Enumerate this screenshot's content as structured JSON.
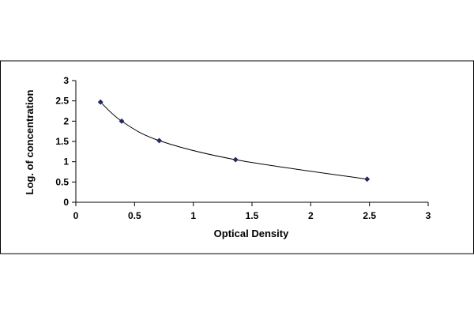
{
  "chart_data": {
    "type": "scatter",
    "title": "",
    "xlabel": "Optical Density",
    "ylabel": "Log. of concentration",
    "xlim": [
      0,
      3
    ],
    "ylim": [
      0,
      3
    ],
    "x_ticks": [
      "0",
      "0.5",
      "1",
      "1.5",
      "2",
      "2.5",
      "3"
    ],
    "y_ticks": [
      "0",
      "0.5",
      "1",
      "1.5",
      "2",
      "2.5",
      "3"
    ],
    "grid": false,
    "legend": "none",
    "series": [
      {
        "x": [
          0.21,
          0.39,
          0.71,
          1.36,
          2.48
        ],
        "y": [
          2.47,
          2.0,
          1.52,
          1.05,
          0.57
        ],
        "marker": "diamond",
        "line": "smooth",
        "color": "#1f2a66"
      }
    ]
  }
}
